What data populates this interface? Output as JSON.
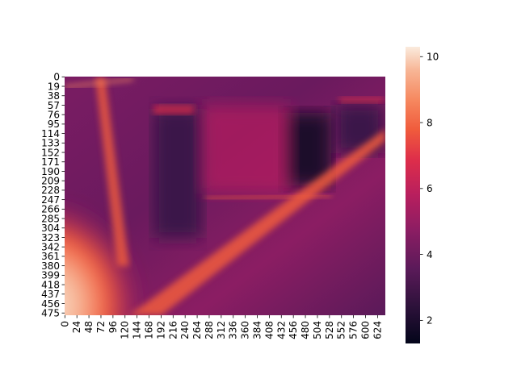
{
  "chart_data": {
    "type": "heatmap",
    "title": "",
    "xlabel": "",
    "ylabel": "",
    "rows": 480,
    "cols": 640,
    "x_tick_labels": [
      "0",
      "24",
      "48",
      "72",
      "96",
      "120",
      "144",
      "168",
      "192",
      "216",
      "240",
      "264",
      "288",
      "312",
      "336",
      "360",
      "384",
      "408",
      "432",
      "456",
      "480",
      "504",
      "528",
      "552",
      "576",
      "600",
      "624"
    ],
    "y_tick_labels": [
      "0",
      "19",
      "38",
      "57",
      "76",
      "95",
      "114",
      "133",
      "152",
      "171",
      "190",
      "209",
      "228",
      "247",
      "266",
      "285",
      "304",
      "323",
      "342",
      "361",
      "380",
      "399",
      "418",
      "437",
      "456",
      "475"
    ],
    "colorbar": {
      "colormap": "rocket",
      "vmin": 1.3,
      "vmax": 10.3,
      "tick_labels": [
        "2",
        "4",
        "6",
        "8",
        "10"
      ],
      "tick_values": [
        2,
        4,
        6,
        8,
        10
      ]
    },
    "value_description_note": "",
    "approx_regions": [
      {
        "x": [
          0,
          160
        ],
        "y": [
          260,
          480
        ],
        "value": 10.0
      },
      {
        "x": [
          60,
          90
        ],
        "y": [
          0,
          300
        ],
        "value": 7.5
      },
      {
        "x": [
          250,
          560
        ],
        "y": [
          230,
          260
        ],
        "value": 6.5
      },
      {
        "x": [
          340,
          480
        ],
        "y": [
          70,
          260
        ],
        "value": 5.2
      },
      {
        "x": [
          180,
          260
        ],
        "y": [
          60,
          300
        ],
        "value": 2.6
      },
      {
        "x": [
          430,
          530
        ],
        "y": [
          80,
          210
        ],
        "value": 1.8
      }
    ],
    "colors": {
      "low": "#03051a",
      "mid": "#cb1b4f",
      "high": "#faebdd"
    }
  }
}
